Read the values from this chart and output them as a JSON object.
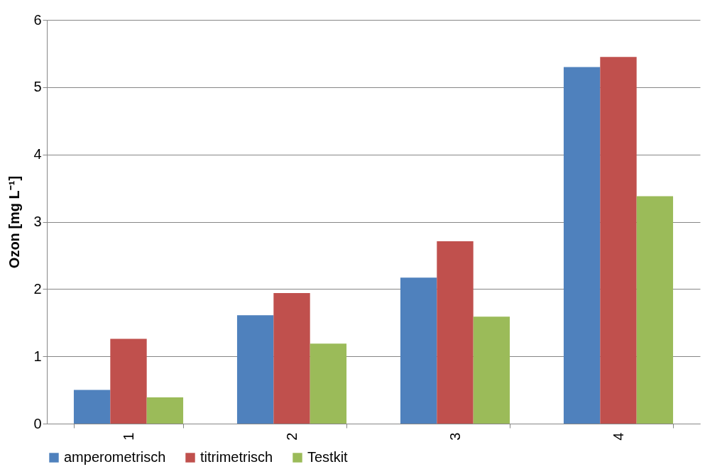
{
  "chart_data": {
    "type": "bar",
    "ylabel": "Ozon [mg L⁻¹]",
    "categories": [
      "1",
      "2",
      "3",
      "4"
    ],
    "series": [
      {
        "name": "amperometrisch",
        "color": "#4f81bd",
        "values": [
          0.5,
          1.61,
          2.17,
          5.3
        ]
      },
      {
        "name": "titrimetrisch",
        "color": "#c0504d",
        "values": [
          1.26,
          1.94,
          2.71,
          5.45
        ]
      },
      {
        "name": "Testkit",
        "color": "#9bbb59",
        "values": [
          0.39,
          1.19,
          1.59,
          3.38
        ]
      }
    ],
    "ylim": [
      0,
      6
    ],
    "yticks": [
      0,
      1,
      2,
      3,
      4,
      5,
      6
    ],
    "grid": "y",
    "legend": "bottom"
  }
}
